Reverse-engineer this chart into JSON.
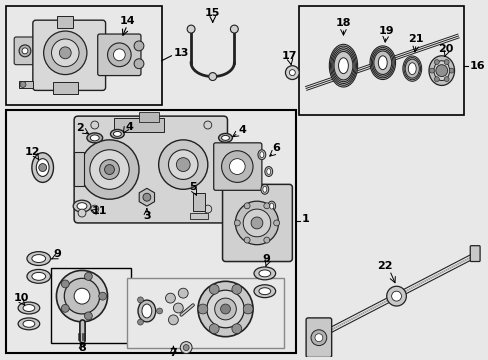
{
  "bg_color": "#e8e8e8",
  "white": "#ffffff",
  "black": "#000000",
  "dark": "#222222",
  "gray_light": "#d0d0d0",
  "gray_med": "#b0b0b0",
  "figsize": [
    4.89,
    3.6
  ],
  "dpi": 100
}
